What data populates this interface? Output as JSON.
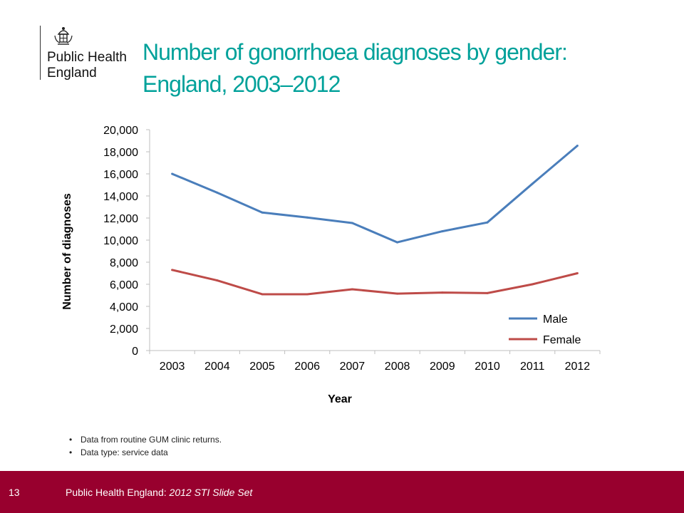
{
  "logo": {
    "line1": "Public Health",
    "line2": "England"
  },
  "title": {
    "line1": "Number of gonorrhoea diagnoses by gender:",
    "line2": "England, 2003–2012"
  },
  "chart_data": {
    "type": "line",
    "title": "",
    "xlabel": "Year",
    "ylabel": "Number of diagnoses",
    "categories": [
      "2003",
      "2004",
      "2005",
      "2006",
      "2007",
      "2008",
      "2009",
      "2010",
      "2011",
      "2012"
    ],
    "ylim": [
      0,
      20000
    ],
    "yticks": [
      0,
      2000,
      4000,
      6000,
      8000,
      10000,
      12000,
      14000,
      16000,
      18000,
      20000
    ],
    "ytick_labels": [
      "0",
      "2,000",
      "4,000",
      "6,000",
      "8,000",
      "10,000",
      "12,000",
      "14,000",
      "16,000",
      "18,000",
      "20,000"
    ],
    "grid": false,
    "legend_position": "bottom-right",
    "series": [
      {
        "name": "Male",
        "color": "#4a7ebb",
        "values": [
          16000,
          14300,
          12500,
          12050,
          11550,
          9800,
          10800,
          11600,
          15100,
          18550
        ]
      },
      {
        "name": "Female",
        "color": "#be4b48",
        "values": [
          7300,
          6350,
          5100,
          5100,
          5550,
          5150,
          5250,
          5200,
          6000,
          7000
        ]
      }
    ]
  },
  "notes": [
    "Data from routine GUM clinic returns.",
    "Data type: service data"
  ],
  "footer": {
    "slide_number": "13",
    "org": "Public Health England: ",
    "deck": "2012 STI Slide Set",
    "bg_color": "#98002e"
  }
}
